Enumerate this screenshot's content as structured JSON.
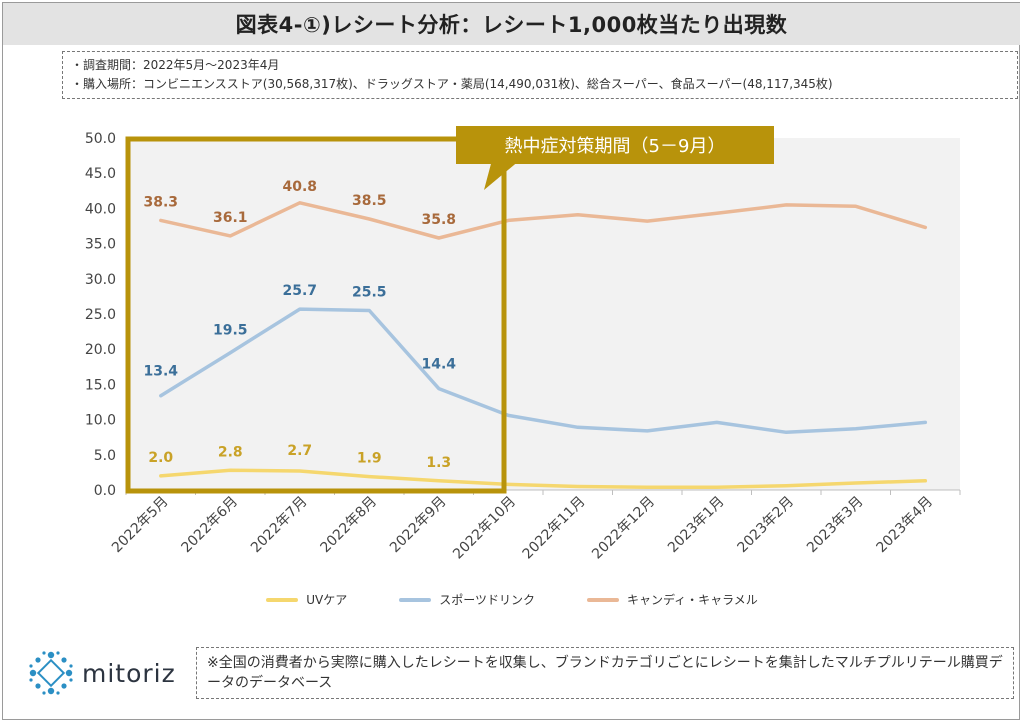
{
  "header": {
    "title": "図表4-①)レシート分析：レシート1,000枚当たり出現数"
  },
  "info": {
    "line1": "・調査期間：2022年5月～2023年4月",
    "line2": "・購入場所：コンビニエンスストア(30,568,317枚)、ドラッグストア・薬局(14,490,031枚)、総合スーパー、食品スーパー(48,117,345枚)"
  },
  "callout": {
    "label": "熱中症対策期間（5－9月）"
  },
  "chart_data": {
    "type": "line",
    "categories": [
      "2022年5月",
      "2022年6月",
      "2022年7月",
      "2022年8月",
      "2022年9月",
      "2022年10月",
      "2022年11月",
      "2022年12月",
      "2023年1月",
      "2023年2月",
      "2023年3月",
      "2023年4月"
    ],
    "ylim": [
      0,
      50
    ],
    "yticks": [
      "0.0",
      "5.0",
      "10.0",
      "15.0",
      "20.0",
      "25.0",
      "30.0",
      "35.0",
      "40.0",
      "45.0",
      "50.0"
    ],
    "grid": false,
    "legend_position": "bottom",
    "series": [
      {
        "name": "UVケア",
        "color": "#f5d76e",
        "label_color": "#c9a227",
        "values": [
          2.0,
          2.8,
          2.7,
          1.9,
          1.3,
          0.8,
          0.5,
          0.4,
          0.4,
          0.6,
          1.0,
          1.3
        ],
        "labels": [
          "2.0",
          "2.8",
          "2.7",
          "1.9",
          "1.3"
        ]
      },
      {
        "name": "スポーツドリンク",
        "color": "#a7c4df",
        "label_color": "#3b6f99",
        "values": [
          13.4,
          19.5,
          25.7,
          25.5,
          14.4,
          10.6,
          8.9,
          8.4,
          9.6,
          8.2,
          8.7,
          9.6
        ],
        "labels": [
          "13.4",
          "19.5",
          "25.7",
          "25.5",
          "14.4"
        ]
      },
      {
        "name": "キャンディ・キャラメル",
        "color": "#eab896",
        "label_color": "#a86a3c",
        "values": [
          38.3,
          36.1,
          40.8,
          38.5,
          35.8,
          38.3,
          39.1,
          38.2,
          39.3,
          40.5,
          40.3,
          37.3
        ],
        "labels": [
          "38.3",
          "36.1",
          "40.8",
          "38.5",
          "35.8"
        ]
      }
    ]
  },
  "footnote": {
    "text": "※全国の消費者から実際に購入したレシートを収集し、ブランドカテゴリごとにレシートを集計したマルチプルリテール購買データのデータベース"
  },
  "logo": {
    "text": "mitoriz",
    "icon": "mitoriz-logo-icon",
    "color": "#2b8fc4"
  },
  "colors": {
    "highlight_border": "#b8930b",
    "callout_bg": "#b8930b",
    "plot_bg": "#f2f2f2"
  }
}
